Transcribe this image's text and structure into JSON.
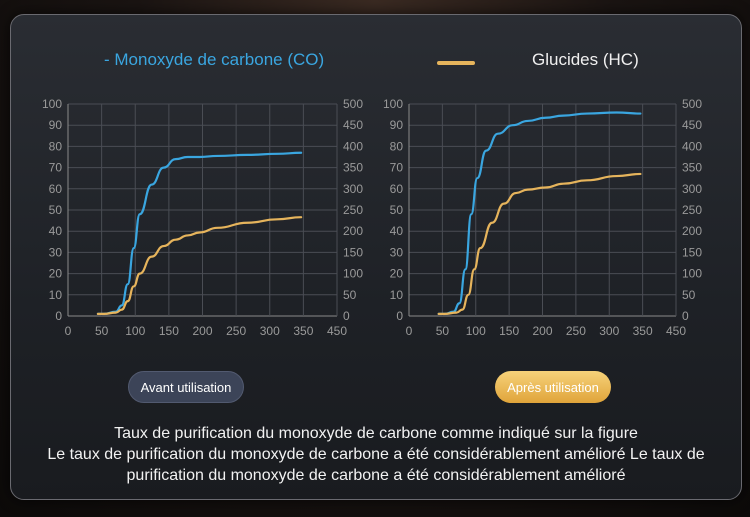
{
  "legend": {
    "co_label": "- Monoxyde de carbone (CO)",
    "hc_label": "Glucides (HC)",
    "co_color": "#3aa6e0",
    "hc_color": "#e6b45c"
  },
  "buttons": {
    "before_label": "Avant utilisation",
    "after_label": "Après utilisation"
  },
  "caption": {
    "line1": "Taux de purification du monoxyde de carbone comme indiqué sur la figure",
    "line2": "Le taux de purification du monoxyde de carbone a été considérablement amélioré Le taux de",
    "line3": "purification du monoxyde de carbone a été considérablement amélioré"
  },
  "chart_data": [
    {
      "type": "line",
      "panel": "Avant utilisation",
      "xlim": [
        0,
        450
      ],
      "ylim_left": [
        0,
        100
      ],
      "ylim_right": [
        0,
        500
      ],
      "x_ticks": [
        "0",
        "50",
        "100",
        "150",
        "200",
        "250",
        "300",
        "350",
        "450"
      ],
      "y_left_ticks": [
        "0",
        "10",
        "20",
        "30",
        "40",
        "50",
        "60",
        "70",
        "80",
        "90",
        "100"
      ],
      "y_right_ticks": [
        "0",
        "50",
        "100",
        "150",
        "200",
        "250",
        "300",
        "350",
        "400",
        "450",
        "500"
      ],
      "grid": true,
      "series": [
        {
          "name": "- Monoxyde de carbone (CO)",
          "axis": "left",
          "color": "#3aa6e0",
          "x": [
            50,
            60,
            80,
            90,
            100,
            110,
            120,
            140,
            160,
            180,
            200,
            220,
            250,
            300,
            350,
            390
          ],
          "y": [
            1,
            1,
            2,
            5,
            15,
            32,
            48,
            62,
            70,
            74,
            75,
            75,
            75.5,
            76,
            76.5,
            77
          ]
        },
        {
          "name": "Glucides (HC)",
          "axis": "right",
          "color": "#e6b45c",
          "x": [
            50,
            60,
            80,
            90,
            100,
            110,
            120,
            140,
            160,
            180,
            200,
            220,
            250,
            300,
            350,
            390
          ],
          "y": [
            5,
            5,
            8,
            15,
            35,
            70,
            100,
            140,
            165,
            180,
            190,
            197,
            208,
            220,
            228,
            233
          ]
        }
      ]
    },
    {
      "type": "line",
      "panel": "Après utilisation",
      "xlim": [
        0,
        450
      ],
      "ylim_left": [
        0,
        100
      ],
      "ylim_right": [
        0,
        500
      ],
      "x_ticks": [
        "0",
        "50",
        "100",
        "150",
        "200",
        "250",
        "300",
        "350",
        "450"
      ],
      "y_left_ticks": [
        "0",
        "10",
        "20",
        "30",
        "40",
        "50",
        "60",
        "70",
        "80",
        "90",
        "100"
      ],
      "y_right_ticks": [
        "0",
        "50",
        "100",
        "150",
        "200",
        "250",
        "300",
        "350",
        "400",
        "450",
        "500"
      ],
      "grid": true,
      "series": [
        {
          "name": "- Monoxyde de carbone (CO)",
          "axis": "left",
          "color": "#3aa6e0",
          "x": [
            50,
            60,
            75,
            85,
            95,
            105,
            115,
            130,
            150,
            175,
            200,
            230,
            260,
            300,
            350,
            390
          ],
          "y": [
            1,
            1,
            2,
            6,
            22,
            48,
            65,
            78,
            86,
            90,
            92,
            93.5,
            94.5,
            95.5,
            96,
            95.5
          ]
        },
        {
          "name": "Glucides (HC)",
          "axis": "right",
          "color": "#e6b45c",
          "x": [
            50,
            60,
            80,
            90,
            100,
            110,
            120,
            140,
            160,
            180,
            200,
            230,
            260,
            300,
            350,
            390
          ],
          "y": [
            5,
            5,
            8,
            15,
            50,
            110,
            160,
            220,
            265,
            290,
            298,
            303,
            312,
            320,
            330,
            335
          ]
        }
      ]
    }
  ]
}
